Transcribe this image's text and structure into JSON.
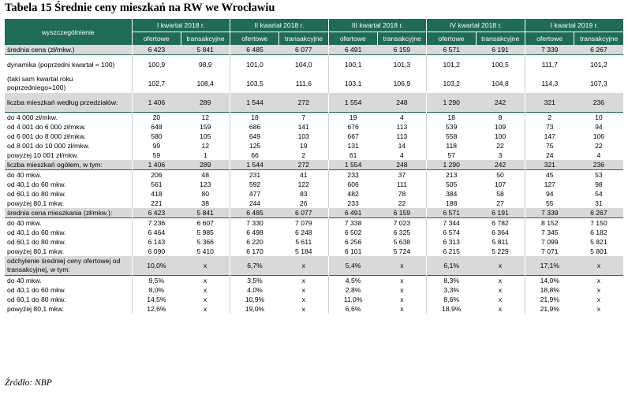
{
  "title": "Tabela 15 Średnie ceny mieszkań na RW we Wrocławiu",
  "source": "Źródło: NBP",
  "header": {
    "row_label": "wyszczególnienie",
    "periods": [
      "I kwartał 2018 r.",
      "II kwartał 2018 r.",
      "III kwartał 2018 r.",
      "IV kwartał 2018 r.",
      "I kwartał 2019 r."
    ],
    "sub": [
      "ofertowe",
      "transakcyjne"
    ]
  },
  "rows": [
    {
      "label": "średnia cena (zł/mkw.)",
      "shade": true,
      "values": [
        "6 423",
        "5 841",
        "6 485",
        "6 077",
        "6 491",
        "6 159",
        "6 571",
        "6 191",
        "7 339",
        "6 267"
      ]
    },
    {
      "label": "dynamika (poprzedni kwartał = 100)",
      "shade": false,
      "values": [
        "100,9",
        "98,9",
        "101,0",
        "104,0",
        "100,1",
        "101,3",
        "101,2",
        "100,5",
        "111,7",
        "101,2"
      ]
    },
    {
      "label": "(taki sam kwartał roku poprzedniego=100)",
      "shade": false,
      "values": [
        "102,7",
        "108,4",
        "103,5",
        "111,6",
        "103,1",
        "106,9",
        "103,2",
        "104,8",
        "114,3",
        "107,3"
      ]
    },
    {
      "label": "liczba mieszkań według przedziałów:",
      "shade": true,
      "values": [
        "1 406",
        "289",
        "1 544",
        "272",
        "1 554",
        "248",
        "1 290",
        "242",
        "321",
        "236"
      ]
    },
    {
      "label": "do 4 000 zł/mkw.",
      "shade": false,
      "values": [
        "20",
        "12",
        "18",
        "7",
        "19",
        "4",
        "18",
        "8",
        "2",
        "10"
      ]
    },
    {
      "label": "od 4 001 do 6 000 zł/mkw.",
      "shade": false,
      "values": [
        "648",
        "159",
        "686",
        "141",
        "676",
        "113",
        "539",
        "109",
        "73",
        "94"
      ]
    },
    {
      "label": "od 6 001 do 8 000 zł/mkw.",
      "shade": false,
      "values": [
        "580",
        "105",
        "649",
        "103",
        "667",
        "113",
        "558",
        "100",
        "147",
        "106"
      ]
    },
    {
      "label": "od 8 001 do 10 000 zł/mkw.",
      "shade": false,
      "values": [
        "99",
        "12",
        "125",
        "19",
        "131",
        "14",
        "118",
        "22",
        "75",
        "22"
      ]
    },
    {
      "label": "powyżej 10 001 zł/mkw.",
      "shade": false,
      "values": [
        "59",
        "1",
        "66",
        "2",
        "61",
        "4",
        "57",
        "3",
        "24",
        "4"
      ]
    },
    {
      "label": "liczba mieszkań ogółem, w tym:",
      "shade": true,
      "values": [
        "1 406",
        "289",
        "1 544",
        "272",
        "1 554",
        "248",
        "1 290",
        "242",
        "321",
        "236"
      ]
    },
    {
      "label": "do 40 mkw.",
      "shade": false,
      "values": [
        "206",
        "48",
        "231",
        "41",
        "233",
        "37",
        "213",
        "50",
        "45",
        "53"
      ]
    },
    {
      "label": "od 40,1 do 60 mkw.",
      "shade": false,
      "values": [
        "561",
        "123",
        "592",
        "122",
        "606",
        "111",
        "505",
        "107",
        "127",
        "98"
      ]
    },
    {
      "label": "od 60,1 do 80 mkw.",
      "shade": false,
      "values": [
        "418",
        "80",
        "477",
        "83",
        "482",
        "78",
        "384",
        "58",
        "94",
        "54"
      ]
    },
    {
      "label": "powyżej 80,1 mkw.",
      "shade": false,
      "values": [
        "221",
        "38",
        "244",
        "26",
        "233",
        "22",
        "188",
        "27",
        "55",
        "31"
      ]
    },
    {
      "label": "średnia cena mieszkania (zł/mkw.):",
      "shade": true,
      "values": [
        "6 423",
        "5 841",
        "6 485",
        "6 077",
        "6 491",
        "6 159",
        "6 571",
        "6 191",
        "7 339",
        "6 267"
      ]
    },
    {
      "label": "do 40 mkw.",
      "shade": false,
      "values": [
        "7 236",
        "6 607",
        "7 330",
        "7 079",
        "7 338",
        "7 023",
        "7 344",
        "6 782",
        "8 152",
        "7 150"
      ]
    },
    {
      "label": "od 40,1 do 60 mkw.",
      "shade": false,
      "values": [
        "6 464",
        "5 985",
        "6 498",
        "6 248",
        "6 502",
        "6 325",
        "6 574",
        "6 364",
        "7 345",
        "6 182"
      ]
    },
    {
      "label": "od 60,1 do 80 mkw.",
      "shade": false,
      "values": [
        "6 143",
        "5 366",
        "6 220",
        "5 611",
        "6 256",
        "5 638",
        "6 313",
        "5 811",
        "7 099",
        "5 821"
      ]
    },
    {
      "label": "powyżej 80,1 mkw.",
      "shade": false,
      "values": [
        "6 090",
        "5 410",
        "6 170",
        "5 184",
        "6 101",
        "5 724",
        "6 215",
        "5 229",
        "7 071",
        "5 801"
      ]
    },
    {
      "label": "odchylenie średniej ceny ofertowej od transakcyjnej, w tym:",
      "shade": true,
      "values": [
        "10,0%",
        "x",
        "6,7%",
        "x",
        "5,4%",
        "x",
        "6,1%",
        "x",
        "17,1%",
        "x"
      ]
    },
    {
      "label": "do 40 mkw.",
      "shade": false,
      "values": [
        "9,5%",
        "x",
        "3,5%",
        "x",
        "4,5%",
        "x",
        "8,3%",
        "x",
        "14,0%",
        "x"
      ]
    },
    {
      "label": "od 40,1 do 60 mkw.",
      "shade": false,
      "values": [
        "8,0%",
        "x",
        "4,0%",
        "x",
        "2,8%",
        "x",
        "3,3%",
        "x",
        "18,8%",
        "x"
      ]
    },
    {
      "label": "od 60,1 do 80 mkw.",
      "shade": false,
      "values": [
        "14,5%",
        "x",
        "10,9%",
        "x",
        "11,0%",
        "x",
        "8,6%",
        "x",
        "21,9%",
        "x"
      ]
    },
    {
      "label": "powyżej 80,1 mkw.",
      "shade": false,
      "values": [
        "12,6%",
        "x",
        "19,0%",
        "x",
        "6,6%",
        "x",
        "18,9%",
        "x",
        "21,9%",
        "x"
      ]
    }
  ]
}
